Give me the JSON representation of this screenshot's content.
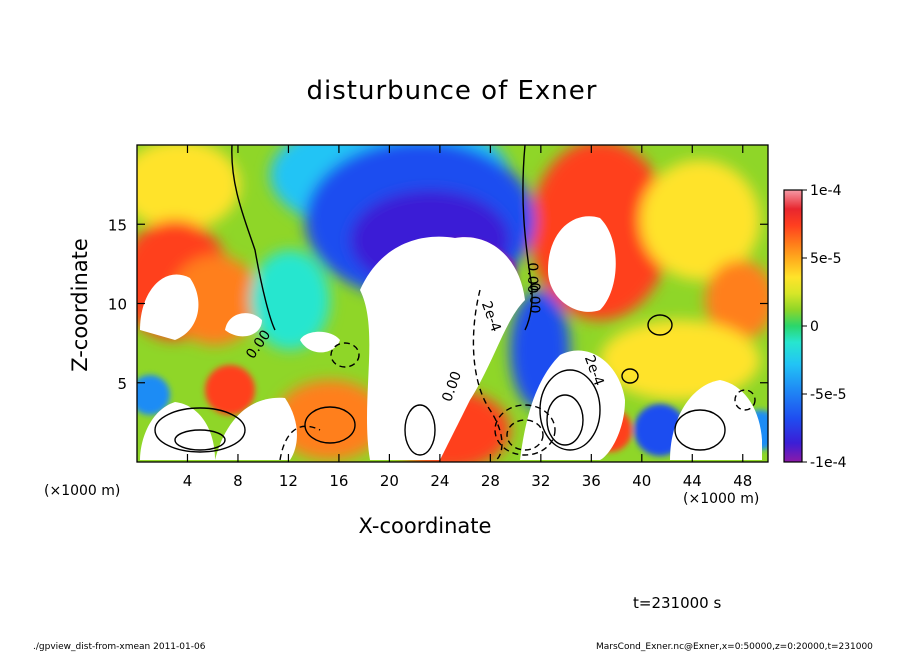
{
  "chart_data": {
    "type": "heatmap",
    "title": "disturbunce of Exner",
    "xlabel": "X-coordinate",
    "ylabel": "Z-coordinate",
    "x_unit_label": "(×1000 m)",
    "xlim": [
      0,
      50
    ],
    "ylim": [
      0,
      20
    ],
    "x_ticks": [
      "4",
      "8",
      "12",
      "16",
      "20",
      "24",
      "28",
      "32",
      "36",
      "40",
      "44",
      "48"
    ],
    "x_tick_values": [
      4,
      8,
      12,
      16,
      20,
      24,
      28,
      32,
      36,
      40,
      44,
      48
    ],
    "y_ticks": [
      "5",
      "10",
      "15"
    ],
    "y_tick_values": [
      5,
      10,
      15
    ],
    "colorbar": {
      "range": [
        -0.0001,
        0.0001
      ],
      "tick_labels": [
        "1e-4",
        "5e-5",
        "0",
        "-5e-5",
        "-1e-4"
      ],
      "tick_values": [
        0.0001,
        5e-05,
        0,
        -5e-05,
        -0.0001
      ],
      "colors": [
        "#8c1aa8",
        "#3b1ed6",
        "#1f4df0",
        "#1f8cf5",
        "#22c4f5",
        "#27e6cf",
        "#2bd66b",
        "#3ac92a",
        "#8fd628",
        "#d8e628",
        "#ffe32a",
        "#ffb21e",
        "#ff7f1a",
        "#ff3f1f",
        "#e8262e",
        "#f06070",
        "#f59aa6"
      ]
    },
    "contour_labels": [
      "0.00",
      "0.00",
      "0.00",
      "0.00",
      "2e-4",
      "2e-4"
    ],
    "time": "t=231000 s"
  },
  "footer": {
    "left": "./gpview_dist-from-xmean  2011-01-06",
    "right": "MarsCond_Exner.nc@Exner,x=0:50000,z=0:20000,t=231000"
  }
}
